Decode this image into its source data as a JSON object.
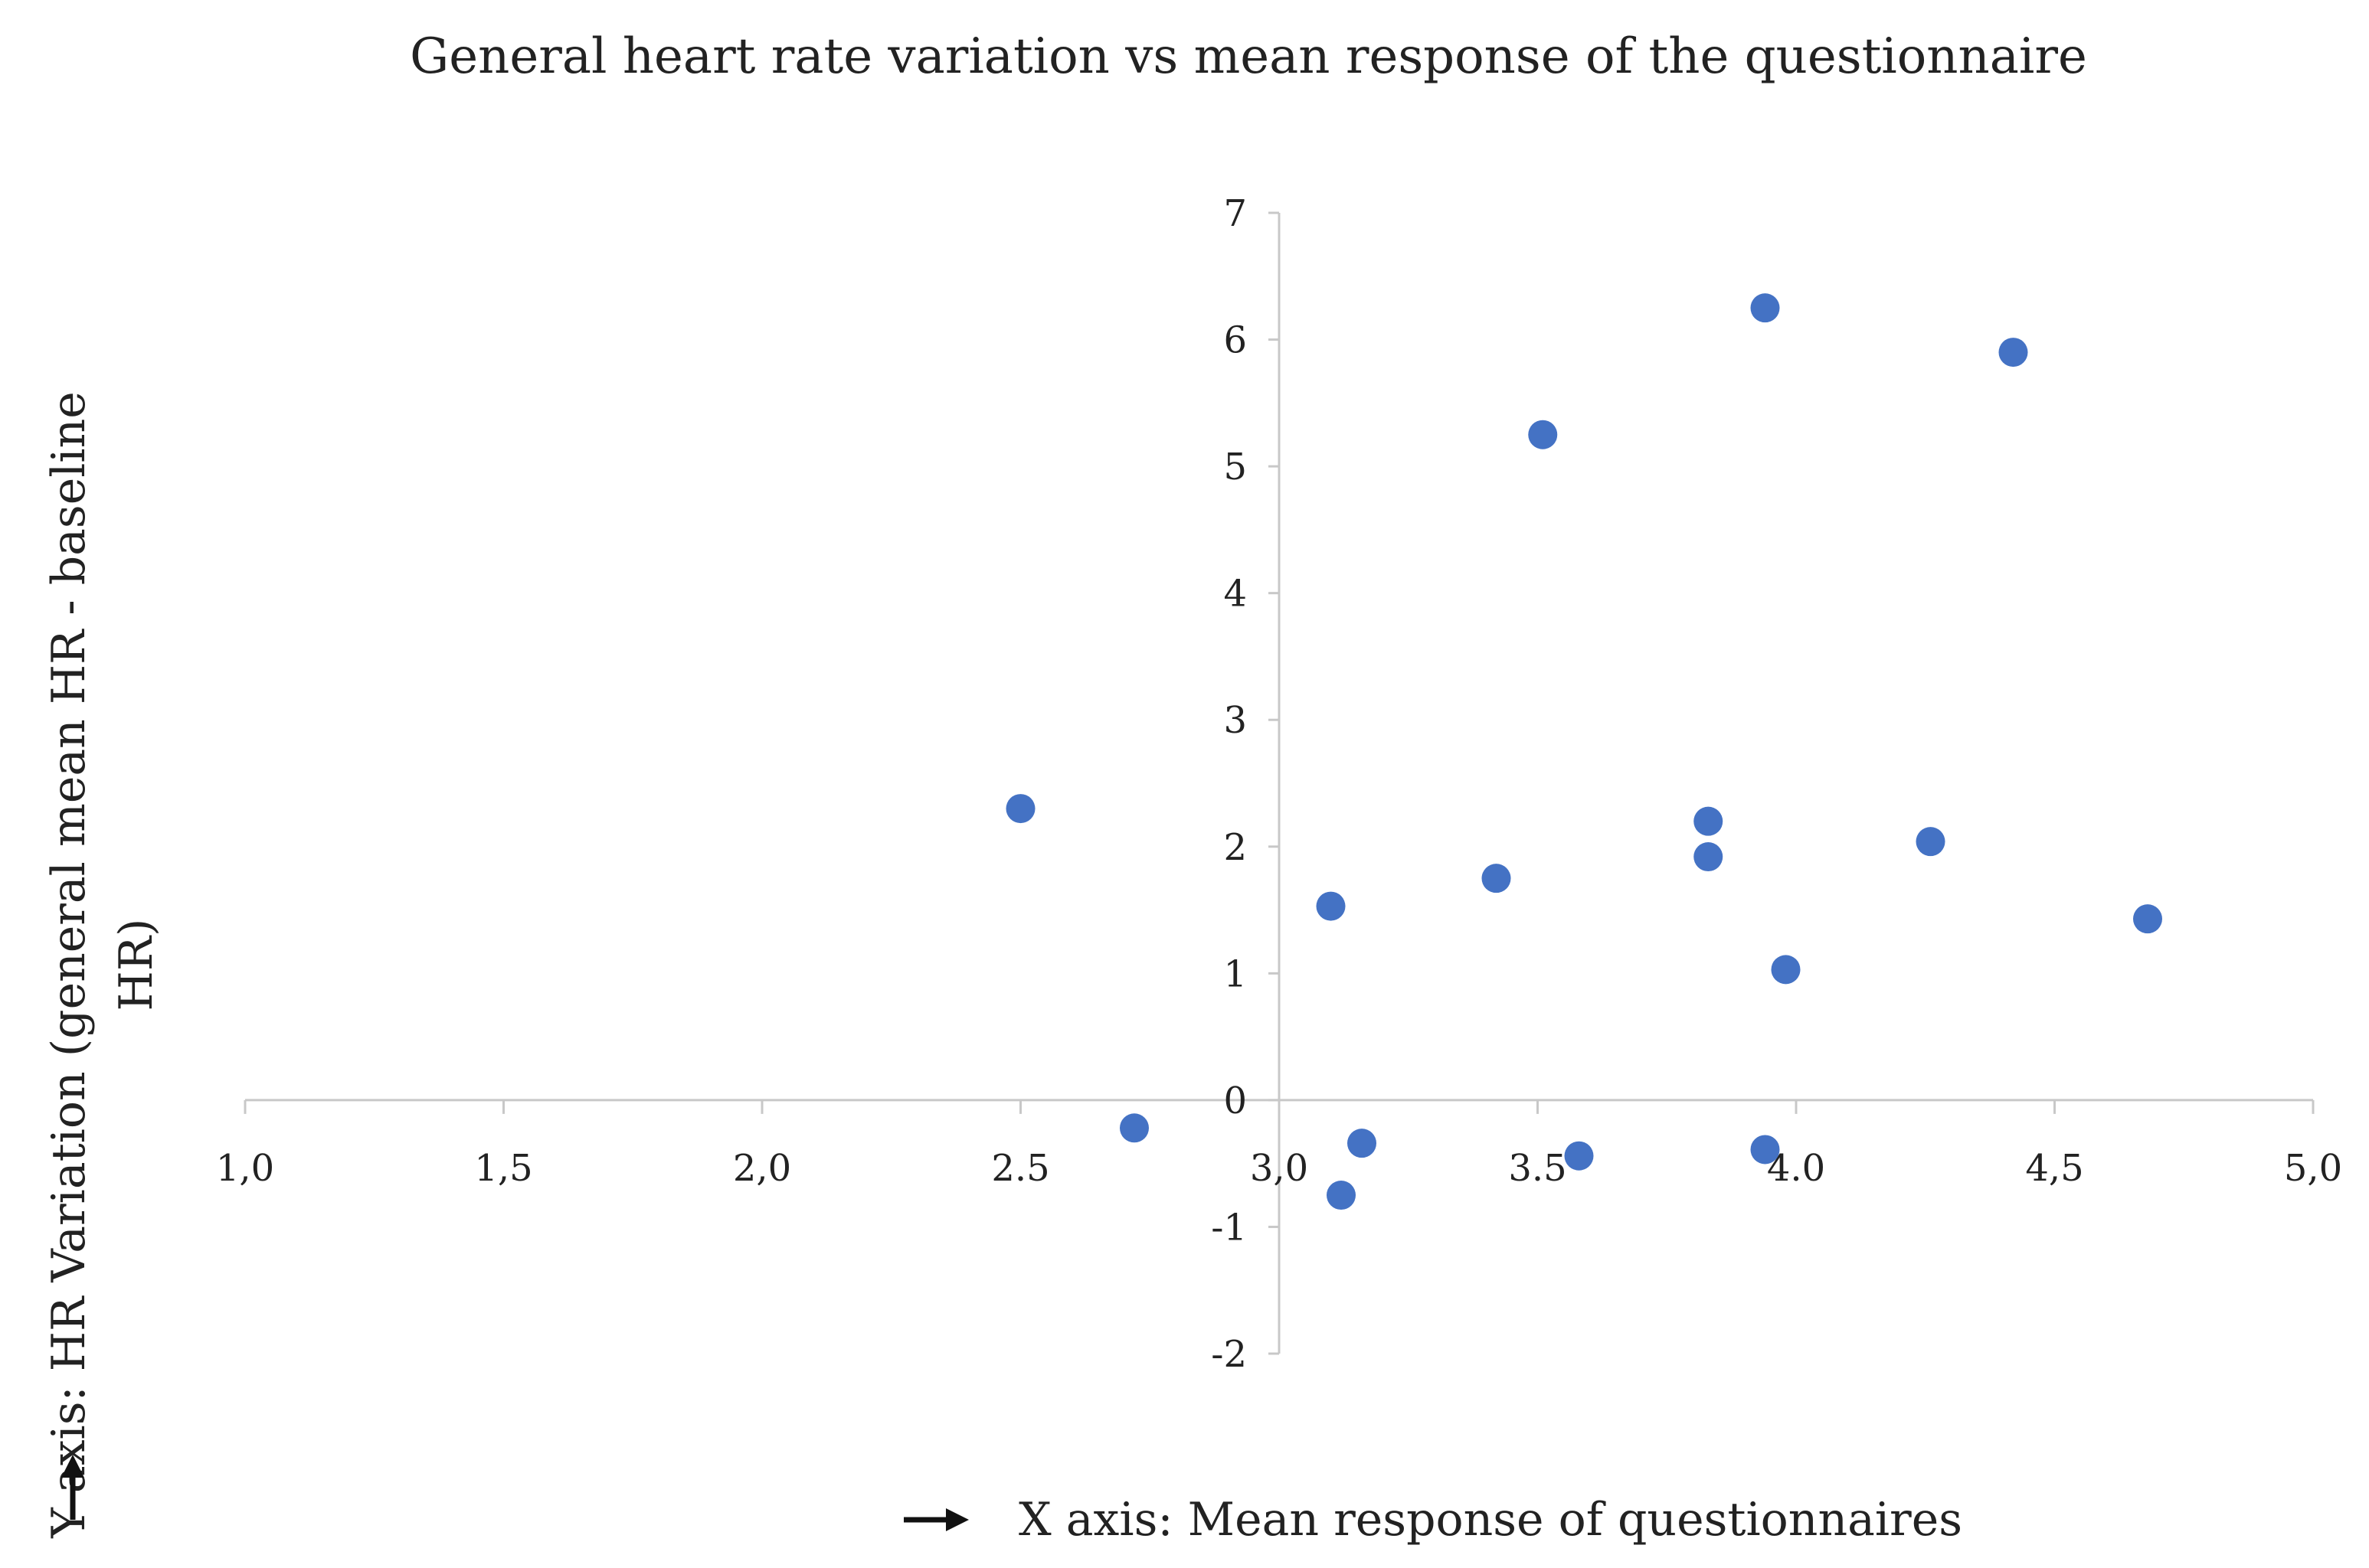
{
  "chart_data": {
    "type": "scatter",
    "title": "General heart rate variation vs mean response of the questionnaire",
    "xlabel": "X axis: Mean response of questionnaires",
    "ylabel_line1": "Y axis: HR Variation (general mean HR - baseline",
    "ylabel_line2": "HR)",
    "xlim": [
      1.0,
      5.0
    ],
    "ylim": [
      -2,
      7
    ],
    "x_ticks": [
      1.0,
      1.5,
      2.0,
      2.5,
      3.0,
      3.5,
      4.0,
      4.5,
      5.0
    ],
    "x_tick_labels": [
      "1,0",
      "1,5",
      "2,0",
      "2.5",
      "3,0",
      "3.5",
      "4.0",
      "4,5",
      "5,0"
    ],
    "y_ticks": [
      -2,
      -1,
      0,
      1,
      2,
      3,
      4,
      5,
      6,
      7
    ],
    "y_tick_labels": [
      "-2",
      "-1",
      "0",
      "1",
      "2",
      "3",
      "4",
      "5",
      "6",
      "7"
    ],
    "x_axis_crosses_y_at": 0,
    "y_axis_crosses_x_at": 3.0,
    "grid": false,
    "series": [
      {
        "name": "HR variation",
        "color": "#4472C4",
        "points": [
          {
            "x": 2.5,
            "y": 2.3
          },
          {
            "x": 2.72,
            "y": -0.22
          },
          {
            "x": 3.1,
            "y": 1.53
          },
          {
            "x": 3.12,
            "y": -0.75
          },
          {
            "x": 3.16,
            "y": -0.34
          },
          {
            "x": 3.42,
            "y": 1.75
          },
          {
            "x": 3.51,
            "y": 5.25
          },
          {
            "x": 3.58,
            "y": -0.44
          },
          {
            "x": 3.83,
            "y": 2.2
          },
          {
            "x": 3.83,
            "y": 1.92
          },
          {
            "x": 3.94,
            "y": 6.25
          },
          {
            "x": 3.94,
            "y": -0.39
          },
          {
            "x": 3.98,
            "y": 1.03
          },
          {
            "x": 4.26,
            "y": 2.04
          },
          {
            "x": 4.42,
            "y": 5.9
          },
          {
            "x": 4.68,
            "y": 1.43
          }
        ]
      }
    ]
  }
}
